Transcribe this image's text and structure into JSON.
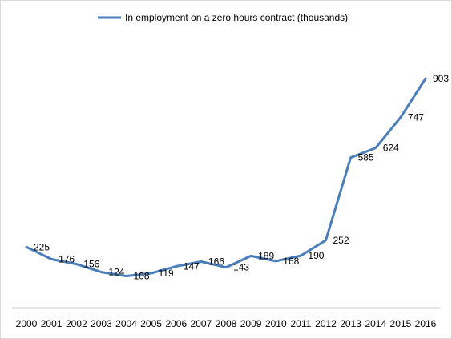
{
  "chart_data": {
    "type": "line",
    "title": "",
    "xlabel": "",
    "ylabel": "",
    "x": [
      "2000",
      "2001",
      "2002",
      "2003",
      "2004",
      "2005",
      "2006",
      "2007",
      "2008",
      "2009",
      "2010",
      "2011",
      "2012",
      "2013",
      "2014",
      "2015",
      "2016"
    ],
    "series": [
      {
        "name": "In employment on a zero hours contract (thousands)",
        "color": "#4a7ebb",
        "values": [
          225,
          176,
          156,
          124,
          108,
          119,
          147,
          166,
          143,
          189,
          168,
          190,
          252,
          585,
          624,
          747,
          903
        ]
      }
    ],
    "ylim": [
      0,
      1000
    ],
    "grid": false,
    "legend_position": "top-center",
    "data_labels": true
  }
}
